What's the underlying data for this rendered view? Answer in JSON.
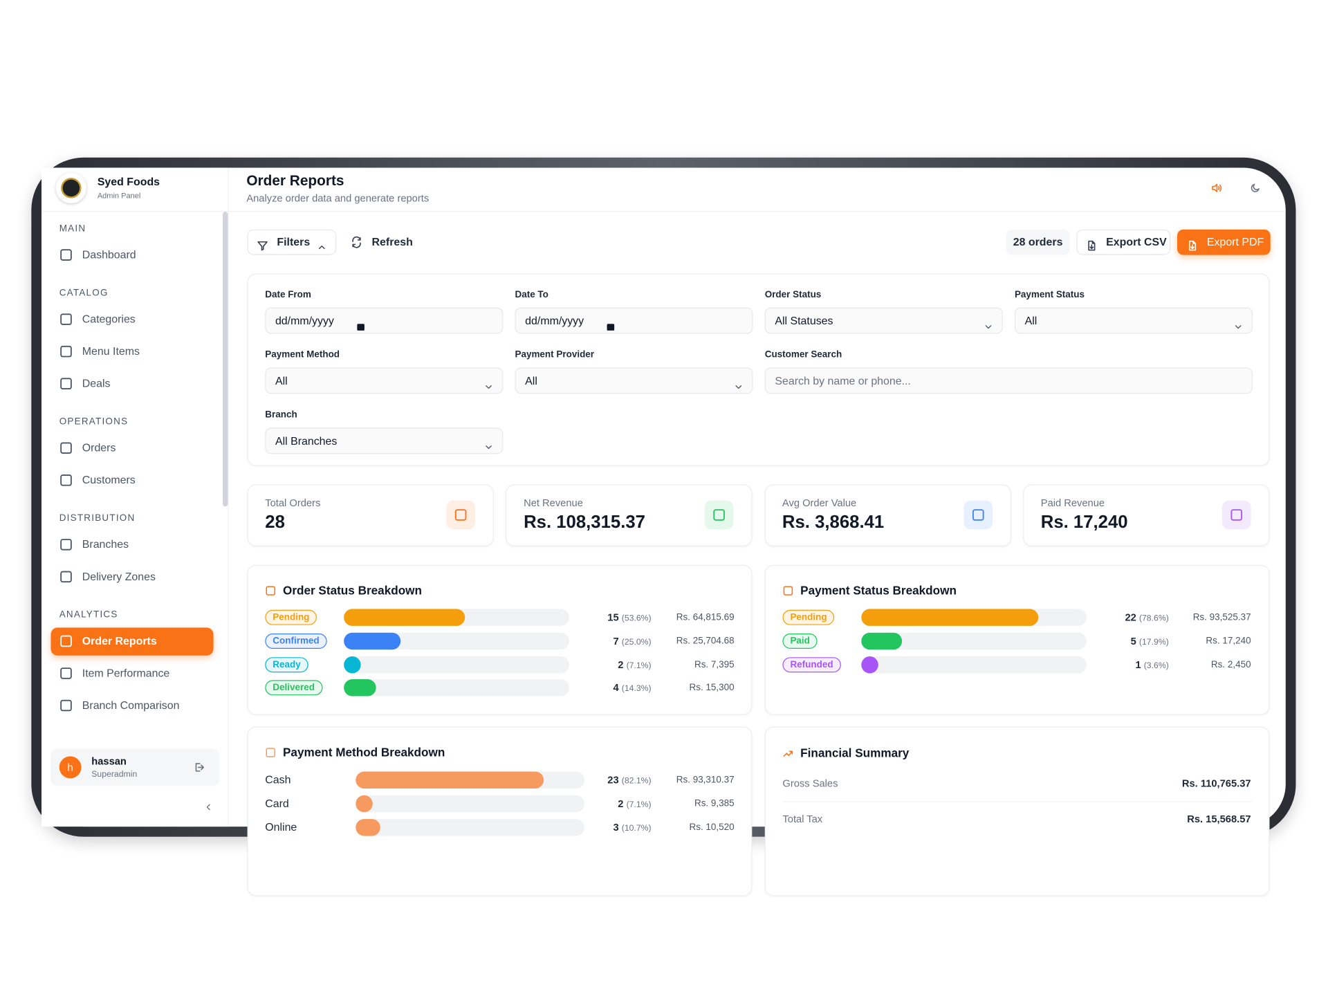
{
  "sidebar": {
    "brand": "Syed Foods",
    "subtitle": "Admin Panel",
    "sections": [
      {
        "title": "MAIN",
        "items": [
          {
            "label": "Dashboard"
          }
        ]
      },
      {
        "title": "CATALOG",
        "items": [
          {
            "label": "Categories"
          },
          {
            "label": "Menu Items"
          },
          {
            "label": "Deals"
          }
        ]
      },
      {
        "title": "OPERATIONS",
        "items": [
          {
            "label": "Orders"
          },
          {
            "label": "Customers"
          }
        ]
      },
      {
        "title": "DISTRIBUTION",
        "items": [
          {
            "label": "Branches"
          },
          {
            "label": "Delivery Zones"
          }
        ]
      },
      {
        "title": "ANALYTICS",
        "items": [
          {
            "label": "Order Reports",
            "active": true
          },
          {
            "label": "Item Performance"
          },
          {
            "label": "Branch Comparison"
          }
        ]
      }
    ],
    "user": {
      "initial": "h",
      "name": "hassan",
      "role": "Superadmin"
    }
  },
  "header": {
    "title": "Order Reports",
    "subtitle": "Analyze order data and generate reports"
  },
  "toolbar": {
    "filters": "Filters",
    "refresh": "Refresh",
    "count": "28 orders",
    "export_csv": "Export CSV",
    "export_pdf": "Export PDF"
  },
  "filters": [
    {
      "label": "Date From",
      "value": "dd/mm/yyyy",
      "kind": "date"
    },
    {
      "label": "Date To",
      "value": "dd/mm/yyyy",
      "kind": "date"
    },
    {
      "label": "Order Status",
      "value": "All Statuses",
      "kind": "select"
    },
    {
      "label": "Payment Status",
      "value": "All",
      "kind": "select"
    },
    {
      "label": "Payment Method",
      "value": "All",
      "kind": "select"
    },
    {
      "label": "Payment Provider",
      "value": "All",
      "kind": "select"
    },
    {
      "label": "Customer Search",
      "value": "Search by name or phone...",
      "kind": "search",
      "wide": true
    },
    {
      "label": "Branch",
      "value": "All Branches",
      "kind": "select"
    }
  ],
  "stats": [
    {
      "label": "Total Orders",
      "value": 28,
      "color": "#f97316"
    },
    {
      "label": "Net Revenue",
      "value": "Rs. 108,315.37",
      "color": "#22c55e"
    },
    {
      "label": "Avg Order Value",
      "value": "Rs. 3,868.41",
      "color": "#3b82f6"
    },
    {
      "label": "Paid Revenue",
      "value": "Rs. 17,240",
      "color": "#a855f7"
    }
  ],
  "order_status": {
    "title": "Order Status Breakdown",
    "rows": [
      {
        "label": "Pending",
        "color": "#f59e0b",
        "count": 15,
        "percent": "(53.6%)",
        "revenue": "Rs. 64,815.69"
      },
      {
        "label": "Confirmed",
        "color": "#3b82f6",
        "count": 7,
        "percent": "(25.0%)",
        "revenue": "Rs. 25,704.68"
      },
      {
        "label": "Ready",
        "color": "#06b6d4",
        "count": 2,
        "percent": "(7.1%)",
        "revenue": "Rs. 7,395"
      },
      {
        "label": "Delivered",
        "color": "#22c55e",
        "count": 4,
        "percent": "(14.3%)",
        "revenue": "Rs. 15,300"
      }
    ]
  },
  "payment_status": {
    "title": "Payment Status Breakdown",
    "rows": [
      {
        "label": "Pending",
        "color": "#f59e0b",
        "count": 22,
        "percent": "(78.6%)",
        "revenue": "Rs. 93,525.37"
      },
      {
        "label": "Paid",
        "color": "#22c55e",
        "count": 5,
        "percent": "(17.9%)",
        "revenue": "Rs. 17,240"
      },
      {
        "label": "Refunded",
        "color": "#a855f7",
        "count": 1,
        "percent": "(3.6%)",
        "revenue": "Rs. 2,450"
      }
    ]
  },
  "payment_method": {
    "title": "Payment Method Breakdown",
    "color": "#f79a5f",
    "rows": [
      {
        "label": "Cash",
        "count": 23,
        "percent": "(82.1%)",
        "revenue": "Rs. 93,310.37"
      },
      {
        "label": "Card",
        "count": 2,
        "percent": "(7.1%)",
        "revenue": "Rs. 9,385"
      },
      {
        "label": "Online",
        "count": 3,
        "percent": "(10.7%)",
        "revenue": "Rs. 10,520"
      }
    ]
  },
  "financial": {
    "title": "Financial Summary",
    "rows": [
      {
        "label": "Gross Sales",
        "value": "Rs. 110,765.37"
      },
      {
        "label": "Total Tax",
        "value": "Rs. 15,568.57"
      }
    ]
  }
}
